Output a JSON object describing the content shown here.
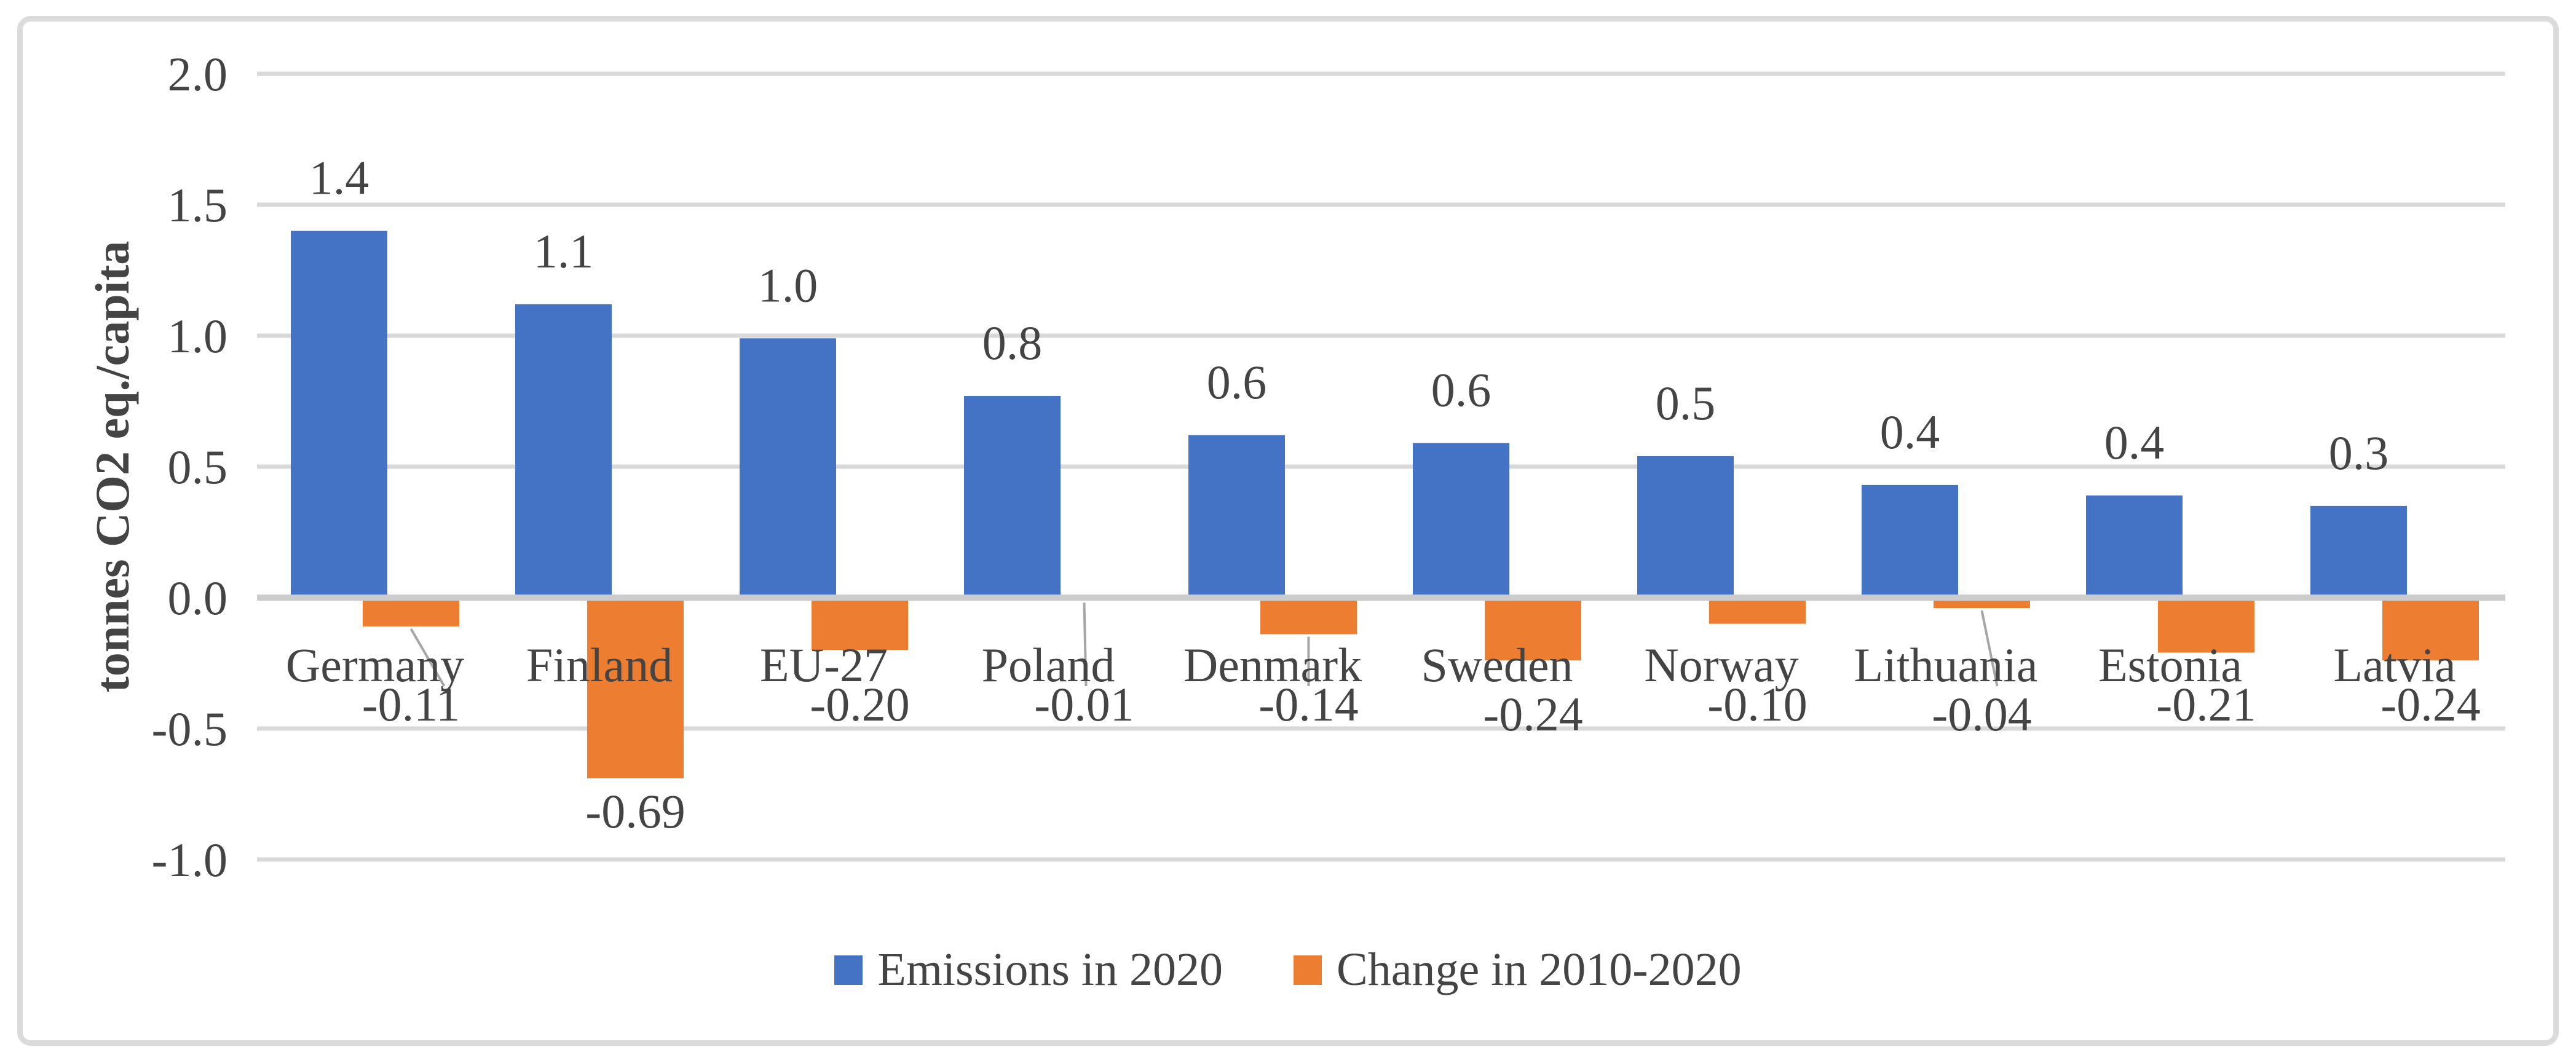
{
  "figure": {
    "background": "#ffffff",
    "border_color": "#dbdbdb"
  },
  "y_axis": {
    "title": "tonnes CO2 eq./capita",
    "tick_labels": [
      "2.0",
      "1.5",
      "1.0",
      "0.5",
      "0.0",
      "-0.5",
      "-1.0"
    ],
    "ticks": [
      2.0,
      1.5,
      1.0,
      0.5,
      0.0,
      -0.5,
      -1.0
    ]
  },
  "legend": {
    "items": [
      {
        "label": "Emissions in 2020",
        "color": "#4472C4"
      },
      {
        "label": "Change in 2010-2020",
        "color": "#ED7D31"
      }
    ]
  },
  "chart_data": {
    "type": "bar",
    "title": "",
    "xlabel": "",
    "ylabel": "tonnes CO2 eq./capita",
    "ylim": [
      -1.0,
      2.0
    ],
    "ytick_step": 0.5,
    "grid": true,
    "gridline_color": "#d9d9d9",
    "zero_line_color": "#cccccc",
    "leader_line_color": "#a6a6a6",
    "text_color": "#444444",
    "legend_position": "bottom-center",
    "categories": [
      "Germany",
      "Finland",
      "EU-27",
      "Poland",
      "Denmark",
      "Sweden",
      "Norway",
      "Lithuania",
      "Estonia",
      "Latvia"
    ],
    "series": [
      {
        "name": "Emissions in 2020",
        "color": "#4472C4",
        "values": [
          1.4,
          1.12,
          0.99,
          0.77,
          0.62,
          0.59,
          0.54,
          0.43,
          0.39,
          0.35
        ],
        "data_labels": [
          "1.4",
          "1.1",
          "1.0",
          "0.8",
          "0.6",
          "0.6",
          "0.5",
          "0.4",
          "0.4",
          "0.3"
        ],
        "label_position": "outside-end-above"
      },
      {
        "name": "Change in 2010-2020",
        "color": "#ED7D31",
        "values": [
          -0.11,
          -0.69,
          -0.2,
          -0.01,
          -0.14,
          -0.24,
          -0.1,
          -0.04,
          -0.21,
          -0.24
        ],
        "data_labels": [
          "-0.11",
          "-0.69",
          "-0.20",
          "-0.01",
          "-0.14",
          "-0.24",
          "-0.10",
          "-0.04",
          "-0.21",
          "-0.24"
        ],
        "label_position": "outside-end-below",
        "leader_lines": [
          true,
          false,
          false,
          true,
          true,
          false,
          false,
          true,
          false,
          false
        ]
      }
    ]
  }
}
